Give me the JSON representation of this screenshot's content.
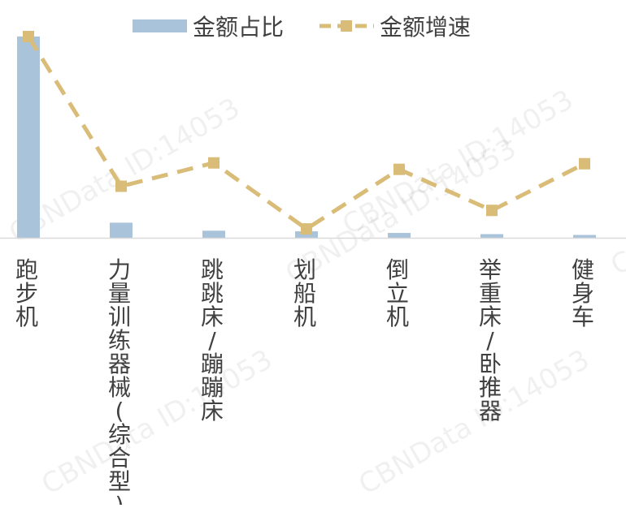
{
  "chart_data": {
    "type": "bar",
    "categories": [
      "跑步机",
      "力量训练器械(综合型)",
      "跳跳床/蹦蹦床",
      "划船机",
      "倒立机",
      "举重床/卧推器",
      "健身车"
    ],
    "series": [
      {
        "name": "金额占比",
        "kind": "bar",
        "color": "#a8c3da",
        "values": [
          100,
          7.5,
          3.5,
          3.2,
          2.4,
          1.8,
          1.4
        ]
      },
      {
        "name": "金额增速",
        "kind": "line",
        "style": "dashed",
        "marker": "square",
        "color": "#d9bc77",
        "values": [
          100,
          25.6,
          37.2,
          4.4,
          34.0,
          13.6,
          36.8
        ]
      }
    ],
    "ylim": [
      0,
      100
    ],
    "legend_position": "top",
    "grid": false,
    "watermark": "CBNData ID:14053"
  }
}
